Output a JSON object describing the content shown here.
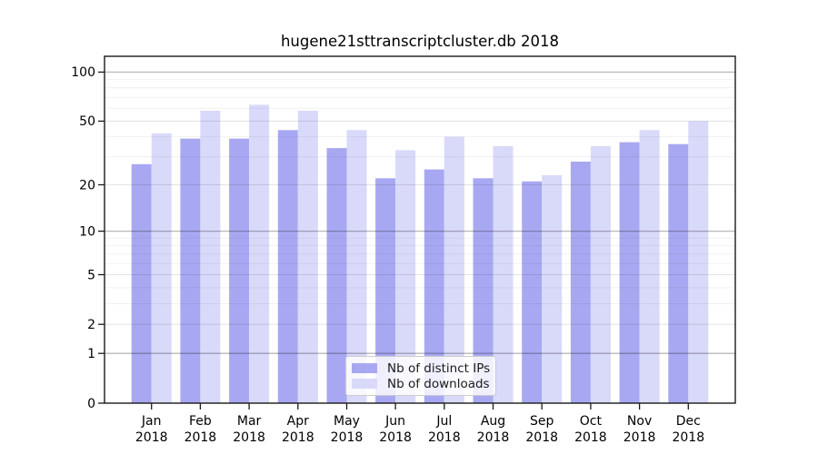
{
  "chart_data": {
    "type": "bar",
    "title": "hugene21sttranscriptcluster.db 2018",
    "year": "2018",
    "categories": [
      "Jan",
      "Feb",
      "Mar",
      "Apr",
      "May",
      "Jun",
      "Jul",
      "Aug",
      "Sep",
      "Oct",
      "Nov",
      "Dec"
    ],
    "series": [
      {
        "name": "Nb of distinct IPs",
        "color": "#a8a8f2",
        "values": [
          27,
          39,
          39,
          44,
          34,
          22,
          25,
          22,
          21,
          28,
          37,
          36
        ]
      },
      {
        "name": "Nb of downloads",
        "color": "#d9d9fa",
        "values": [
          42,
          58,
          63,
          58,
          44,
          33,
          40,
          35,
          23,
          35,
          44,
          50
        ]
      }
    ],
    "xlabel": "",
    "ylabel": "",
    "yscale": "log1p",
    "ylim": [
      0,
      125
    ],
    "yticks": [
      0,
      1,
      2,
      5,
      10,
      20,
      50,
      100
    ],
    "yticks_minor": [
      3,
      4,
      6,
      7,
      8,
      9,
      30,
      40,
      60,
      70,
      80,
      90
    ],
    "grid": "horizontal",
    "legend_position": "inside-bottom-center",
    "colors": {
      "background": "#ffffff",
      "axis": "#1a1a1a",
      "tick_label": "#000000",
      "decade_gridline": "rgba(0,0,0,0.28)",
      "major_gridline": "rgba(0,0,0,0.11)",
      "minor_gridline": "rgba(0,0,0,0.055)"
    }
  }
}
